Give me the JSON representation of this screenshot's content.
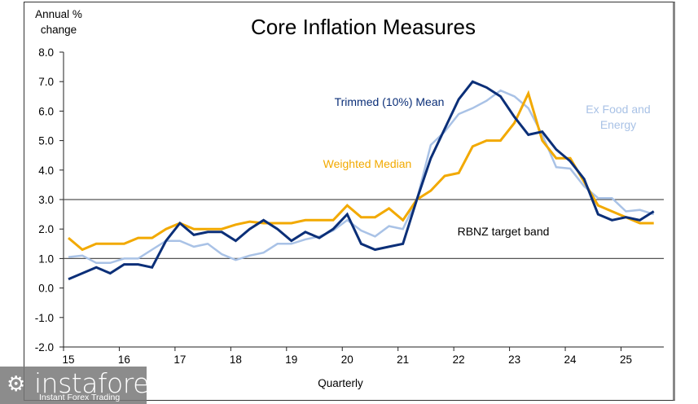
{
  "chart_data": {
    "type": "line",
    "title": "Core Inflation Measures",
    "ylabel": "Annual %\nchange",
    "ylabel_lines": [
      "Annual %",
      "change"
    ],
    "xlabel": "Quarterly",
    "ylim": [
      -2.0,
      8.0
    ],
    "yticks": [
      "8.0",
      "7.0",
      "6.0",
      "5.0",
      "4.0",
      "3.0",
      "2.0",
      "1.0",
      "0.0",
      "-1.0",
      "-2.0"
    ],
    "ytick_values": [
      8,
      7,
      6,
      5,
      4,
      3,
      2,
      1,
      0,
      -1,
      -2
    ],
    "xticks": [
      "15",
      "16",
      "17",
      "18",
      "19",
      "20",
      "21",
      "22",
      "23",
      "24",
      "25"
    ],
    "x_start": "2015 Q1",
    "x_end": "2025 Q3",
    "frequency": "quarterly",
    "grid": false,
    "target_band": {
      "label": "RBNZ target band",
      "lower": 1.0,
      "upper": 3.0
    },
    "series": [
      {
        "name": "Trimmed (10%) Mean",
        "color": "#0b2f78",
        "values": [
          0.3,
          0.5,
          0.7,
          0.5,
          0.8,
          0.8,
          0.7,
          1.6,
          2.2,
          1.8,
          1.9,
          1.9,
          1.6,
          2.0,
          2.3,
          2.0,
          1.6,
          1.9,
          1.7,
          2.0,
          2.5,
          1.5,
          1.3,
          1.4,
          1.5,
          3.0,
          4.4,
          5.4,
          6.4,
          7.0,
          6.8,
          6.5,
          5.8,
          5.2,
          5.3,
          4.7,
          4.3,
          3.7,
          2.5,
          2.3,
          2.4,
          2.3,
          2.6
        ]
      },
      {
        "name": "Weighted Median",
        "color": "#f2a900",
        "values": [
          1.7,
          1.3,
          1.5,
          1.5,
          1.5,
          1.7,
          1.7,
          2.0,
          2.2,
          2.0,
          2.0,
          2.0,
          2.15,
          2.25,
          2.2,
          2.2,
          2.2,
          2.3,
          2.3,
          2.3,
          2.8,
          2.4,
          2.4,
          2.7,
          2.3,
          3.0,
          3.3,
          3.8,
          3.9,
          4.8,
          5.0,
          5.0,
          5.6,
          6.6,
          5.0,
          4.4,
          4.4,
          3.6,
          2.8,
          2.6,
          2.4,
          2.2,
          2.2
        ]
      },
      {
        "name": "Ex Food and Energy",
        "color": "#a9c2e6",
        "values": [
          1.05,
          1.1,
          0.85,
          0.85,
          1.0,
          1.0,
          1.3,
          1.6,
          1.6,
          1.4,
          1.5,
          1.15,
          0.95,
          1.1,
          1.2,
          1.5,
          1.5,
          1.65,
          1.75,
          1.95,
          2.3,
          1.95,
          1.75,
          2.1,
          2.0,
          3.0,
          4.85,
          5.3,
          5.9,
          6.1,
          6.35,
          6.7,
          6.5,
          6.1,
          5.2,
          4.1,
          4.05,
          3.45,
          3.05,
          3.05,
          2.6,
          2.65,
          2.5
        ]
      }
    ],
    "annotations": [
      {
        "text": "Trimmed (10%) Mean",
        "color": "#0b2f78"
      },
      {
        "text": "Weighted Median",
        "color": "#f2a900"
      },
      {
        "text": "Ex Food and",
        "color": "#a9c2e6"
      },
      {
        "text": "Energy",
        "color": "#a9c2e6"
      },
      {
        "text": "RBNZ target band",
        "color": "#000000"
      }
    ]
  },
  "watermark": {
    "brand": "instaforex",
    "tagline": "Instant Forex Trading",
    "icon": "gear-person-icon"
  }
}
